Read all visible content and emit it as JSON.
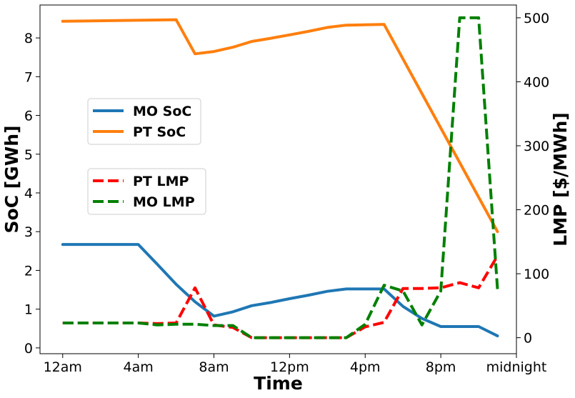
{
  "chart_data": {
    "type": "line",
    "title": "",
    "xlabel": "Time",
    "ylabel_left": "SoC [GWh]",
    "ylabel_right": "LMP [$/MWh]",
    "x_ticks": [
      {
        "hour": 0,
        "label": "12am"
      },
      {
        "hour": 4,
        "label": "4am"
      },
      {
        "hour": 8,
        "label": "8am"
      },
      {
        "hour": 12,
        "label": "12pm"
      },
      {
        "hour": 16,
        "label": "4pm"
      },
      {
        "hour": 20,
        "label": "8pm"
      },
      {
        "hour": 24,
        "label": "midnight"
      }
    ],
    "xlim": [
      -1.2,
      24.0
    ],
    "y_left_ticks": [
      0,
      1,
      2,
      3,
      4,
      5,
      6,
      7,
      8
    ],
    "y_left_lim": [
      -0.15,
      8.85
    ],
    "y_right_ticks": [
      0,
      100,
      200,
      300,
      400,
      500
    ],
    "y_right_lim": [
      -25,
      520
    ],
    "grid": false,
    "series": [
      {
        "name": "MO SoC",
        "axis": "left",
        "color": "#1f77b4",
        "style": "solid",
        "x": [
          0,
          4,
          5,
          6,
          7,
          8,
          9,
          10,
          11,
          12,
          13,
          14,
          15,
          16,
          17,
          18,
          19,
          20,
          21,
          22,
          23
        ],
        "y": [
          2.67,
          2.67,
          2.16,
          1.64,
          1.19,
          0.82,
          0.93,
          1.09,
          1.17,
          1.27,
          1.36,
          1.46,
          1.52,
          1.52,
          1.52,
          1.07,
          0.76,
          0.55,
          0.55,
          0.55,
          0.31
        ]
      },
      {
        "name": "PT SoC",
        "axis": "left",
        "color": "#ff7f0e",
        "style": "solid",
        "x": [
          0,
          6,
          7,
          8,
          9,
          10,
          11,
          12,
          13,
          14,
          15,
          17,
          23
        ],
        "y": [
          8.43,
          8.47,
          7.59,
          7.65,
          7.76,
          7.91,
          7.99,
          8.08,
          8.17,
          8.27,
          8.33,
          8.35,
          3.0
        ]
      },
      {
        "name": "PT LMP",
        "axis": "right",
        "color": "#ff0000",
        "style": "dashed",
        "x": [
          0,
          4,
          5,
          6,
          7,
          8,
          9,
          10,
          11,
          12,
          13,
          14,
          15,
          16,
          17,
          18,
          19,
          20,
          21,
          22,
          23
        ],
        "y": [
          23,
          23,
          22,
          23,
          78,
          20,
          16,
          0,
          0,
          0,
          0,
          0,
          0,
          17,
          24,
          77,
          77,
          78,
          86,
          78,
          128
        ]
      },
      {
        "name": "MO LMP",
        "axis": "right",
        "color": "#008000",
        "style": "dashed",
        "x": [
          0,
          4,
          5,
          6,
          7,
          8,
          9,
          10,
          11,
          12,
          13,
          14,
          15,
          16,
          17,
          18,
          19,
          20,
          21,
          22,
          23
        ],
        "y": [
          23,
          23,
          20,
          21,
          21,
          19,
          19,
          0,
          0,
          0,
          0,
          0,
          0,
          21,
          82,
          73,
          20,
          73,
          500,
          500,
          76
        ]
      }
    ],
    "legends": [
      {
        "placement": "upper-left",
        "entries": [
          "MO SoC",
          "PT SoC"
        ]
      },
      {
        "placement": "center-left",
        "entries": [
          "PT LMP",
          "MO LMP"
        ]
      }
    ]
  }
}
